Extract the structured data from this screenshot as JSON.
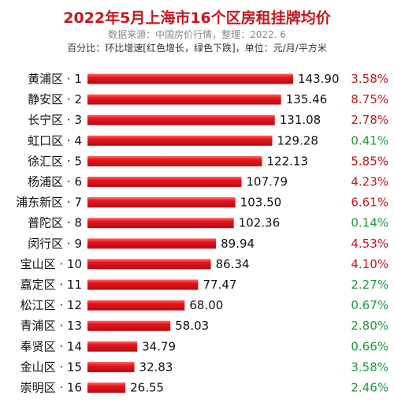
{
  "chart_data": {
    "type": "bar",
    "orientation": "horizontal",
    "title": "2022年5月上海市16个区房租挂牌均价",
    "subtitle": "数据来源：中国房价行情，整理：2022. 6",
    "note": "百分比：环比增速[红色增长，绿色下跌]，单位：元/月/平方米",
    "xlim": [
      0,
      160
    ],
    "categories": [
      "黄浦区 · 1",
      "静安区 · 2",
      "长宁区 · 3",
      "虹口区 · 4",
      "徐汇区 · 5",
      "杨浦区 · 6",
      "浦东新区 · 7",
      "普陀区 · 8",
      "闵行区 · 9",
      "宝山区 · 10",
      "嘉定区 · 11",
      "松江区 · 12",
      "青浦区 · 13",
      "奉贤区 · 14",
      "金山区 · 15",
      "崇明区 · 16"
    ],
    "values": [
      143.9,
      135.46,
      131.08,
      129.28,
      122.13,
      107.79,
      103.5,
      102.36,
      89.94,
      86.34,
      77.47,
      68.0,
      58.03,
      34.79,
      32.83,
      26.55
    ],
    "value_labels": [
      "143.90",
      "135.46",
      "131.08",
      "129.28",
      "122.13",
      "107.79",
      "103.50",
      "102.36",
      "89.94",
      "86.34",
      "77.47",
      "68.00",
      "58.03",
      "34.79",
      "32.83",
      "26.55"
    ],
    "pct_labels": [
      "3.58%",
      "8.75%",
      "2.78%",
      "0.41%",
      "5.85%",
      "4.23%",
      "6.61%",
      "0.14%",
      "4.53%",
      "4.10%",
      "2.27%",
      "0.67%",
      "2.80%",
      "0.66%",
      "3.58%",
      "2.46%"
    ],
    "pct_direction": [
      "up",
      "up",
      "up",
      "down",
      "up",
      "up",
      "up",
      "down",
      "up",
      "up",
      "down",
      "down",
      "down",
      "down",
      "down",
      "down"
    ],
    "colors": {
      "bar": "#e8141c",
      "up": "#c8161d",
      "down": "#1f9a3c"
    }
  }
}
